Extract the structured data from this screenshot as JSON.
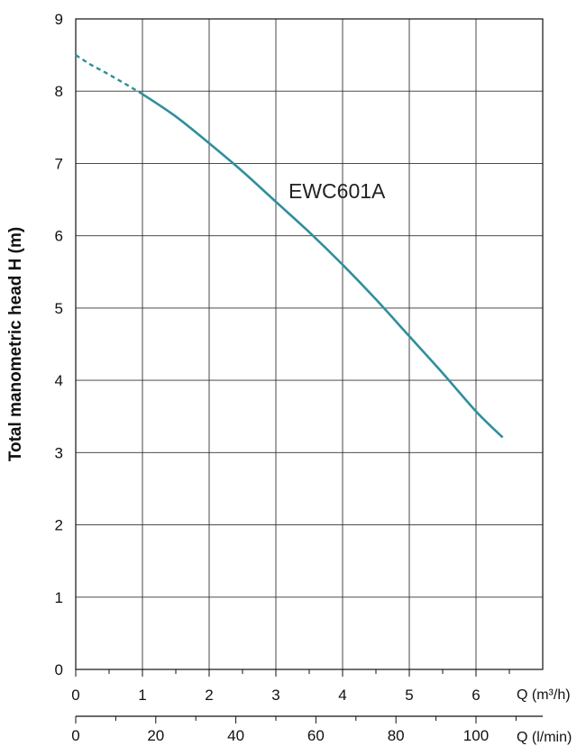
{
  "chart_data": {
    "type": "line",
    "title": "",
    "ylabel": "Total manometric head H (m)",
    "ylim": [
      0,
      9
    ],
    "yticks": [
      "0",
      "1",
      "2",
      "3",
      "4",
      "5",
      "6",
      "7",
      "8",
      "9"
    ],
    "xlabel_primary": "Q (m³/h)",
    "xlim_primary": [
      0,
      7
    ],
    "xticks_primary": [
      "0",
      "1",
      "2",
      "3",
      "4",
      "5",
      "6"
    ],
    "xlabel_secondary": "Q (l/min)",
    "xlim_secondary": [
      0,
      116.67
    ],
    "xticks_secondary": [
      "0",
      "20",
      "40",
      "60",
      "80",
      "100"
    ],
    "grid": true,
    "series": [
      {
        "name": "EWC601A",
        "color": "#2e8f9d",
        "dashed_segment": {
          "x": [
            0,
            0.2,
            0.5,
            0.8,
            1.0
          ],
          "y": [
            8.5,
            8.38,
            8.23,
            8.07,
            7.96
          ]
        },
        "x": [
          1.0,
          1.5,
          2.0,
          2.5,
          3.0,
          3.5,
          4.0,
          4.5,
          5.0,
          5.5,
          6.0,
          6.4
        ],
        "y": [
          7.96,
          7.65,
          7.28,
          6.89,
          6.47,
          6.05,
          5.6,
          5.12,
          4.61,
          4.1,
          3.57,
          3.21
        ]
      }
    ]
  }
}
